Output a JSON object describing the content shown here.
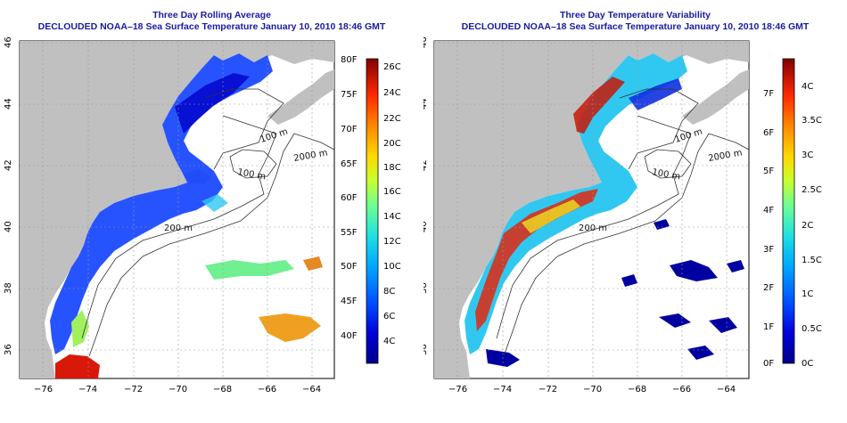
{
  "figure": {
    "left_panel": {
      "title_line1": "Three Day Rolling Average",
      "title_line2": "DECLOUDED NOAA–18 Sea Surface Temperature January 10, 2010 18:46 GMT",
      "colorbar_units_c": [
        "26C",
        "24C",
        "22C",
        "20C",
        "18C",
        "16C",
        "14C",
        "12C",
        "10C",
        "8C",
        "6C",
        "4C"
      ],
      "colorbar_units_f": [
        "80F",
        "75F",
        "70F",
        "65F",
        "60F",
        "55F",
        "50F",
        "45F",
        "40F"
      ],
      "colors": [
        "#000080",
        "#0000e0",
        "#0060ff",
        "#00b0ff",
        "#40e0d0",
        "#80ff80",
        "#d0ff30",
        "#ffd000",
        "#ff8000",
        "#ff2000",
        "#b00000",
        "#800000"
      ]
    },
    "right_panel": {
      "title_line1": "Three Day Temperature Variability",
      "title_line2": "DECLOUDED NOAA–18 Sea Surface Temperature January 10, 2010 18:46 GMT",
      "colorbar_units_c": [
        "4C",
        "3.5C",
        "3C",
        "2.5C",
        "2C",
        "1.5C",
        "1C",
        "0.5C",
        "0C"
      ],
      "colorbar_units_f": [
        "7F",
        "6F",
        "5F",
        "4F",
        "3F",
        "2F",
        "1F",
        "0F"
      ],
      "colors": [
        "#000080",
        "#0000e0",
        "#0060ff",
        "#00b0ff",
        "#40e0d0",
        "#80ff80",
        "#d0ff30",
        "#ffd000",
        "#ff8000",
        "#ff2000",
        "#b00000",
        "#800000"
      ]
    },
    "x_ticks": [
      "−76",
      "−74",
      "−72",
      "−70",
      "−68",
      "−66",
      "−64"
    ],
    "y_ticks": [
      "46",
      "44",
      "42",
      "40",
      "38",
      "36"
    ],
    "isobath_labels": [
      "100 m",
      "100 m",
      "200 m",
      "2000 m",
      "200 m"
    ],
    "land_color": "#c0c0c0"
  }
}
